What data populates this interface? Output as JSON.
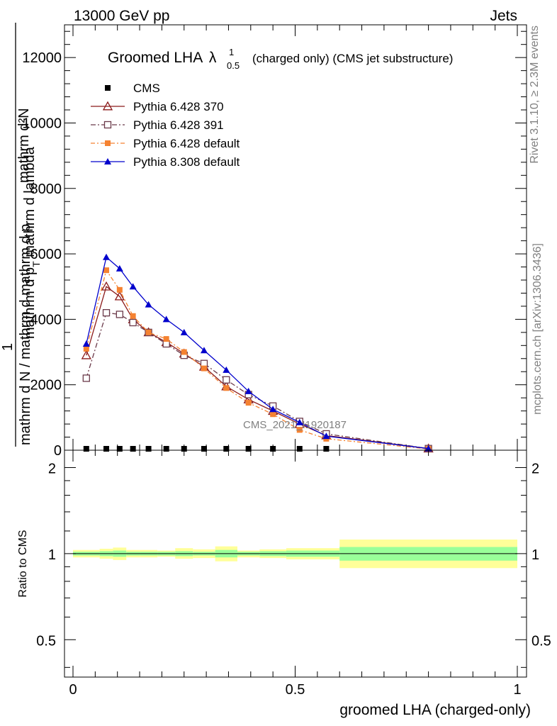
{
  "header": {
    "left": "13000 GeV pp",
    "right": "Jets"
  },
  "side": {
    "rivet": "Rivet 3.1.10, ≥ 2.3M events",
    "mcplots": "mcplots.cern.ch [arXiv:1306.3436]"
  },
  "watermark": "CMS_2021_I1920187",
  "chart_data": [
    {
      "type": "line",
      "title": "Groomed LHA",
      "title_symbol": "λ",
      "title_sup": "1",
      "title_sub": "0.5",
      "title_suffix": "(charged only) (CMS jet substructure)",
      "ylabel_top": "mathrm d²N",
      "ylabel_top_sub": "mathrm d p",
      "ylabel_top_subsub": "T",
      "ylabel_top_rest": " mathrm d lambda",
      "ylabel_bottom_one": "1",
      "ylabel_bottom": "mathrm d N / mathrm d mathrm d p",
      "ylim": [
        0,
        13000
      ],
      "y_ticks": [
        0,
        2000,
        4000,
        6000,
        8000,
        10000,
        12000
      ],
      "y_tick_labels": [
        "0",
        "2000",
        "4000",
        "6000",
        "8000",
        "10000",
        "12000"
      ],
      "xlim": [
        0,
        1
      ],
      "series": [
        {
          "name": "CMS",
          "color": "#000000",
          "marker": "square-filled",
          "x": [
            0.03,
            0.075,
            0.105,
            0.135,
            0.17,
            0.21,
            0.25,
            0.295,
            0.345,
            0.395,
            0.45,
            0.51,
            0.57
          ],
          "values": [
            0,
            0,
            0,
            0,
            0,
            0,
            0,
            0,
            0,
            0,
            0,
            0,
            0
          ]
        },
        {
          "name": "Pythia 6.428 370",
          "color": "#8b1a1a",
          "marker": "triangle-open",
          "x": [
            0.03,
            0.075,
            0.105,
            0.135,
            0.17,
            0.21,
            0.25,
            0.295,
            0.345,
            0.395,
            0.45,
            0.51,
            0.57,
            0.8
          ],
          "values": [
            2900,
            5000,
            4700,
            4000,
            3600,
            3300,
            2950,
            2550,
            1950,
            1550,
            1200,
            800,
            450,
            50
          ]
        },
        {
          "name": "Pythia 6.428 391",
          "color": "#6b3a4a",
          "marker": "square-open",
          "x": [
            0.03,
            0.075,
            0.105,
            0.135,
            0.17,
            0.21,
            0.25,
            0.295,
            0.345,
            0.395,
            0.45,
            0.51,
            0.57,
            0.8
          ],
          "values": [
            2200,
            4200,
            4150,
            3900,
            3600,
            3250,
            2900,
            2650,
            2150,
            1700,
            1350,
            880,
            500,
            50
          ]
        },
        {
          "name": "Pythia 6.428 default",
          "color": "#f58231",
          "marker": "square-filled",
          "x": [
            0.03,
            0.075,
            0.105,
            0.135,
            0.17,
            0.21,
            0.25,
            0.295,
            0.345,
            0.395,
            0.45,
            0.51,
            0.57,
            0.8
          ],
          "values": [
            3100,
            5500,
            4900,
            4100,
            3600,
            3400,
            3000,
            2500,
            1900,
            1450,
            1100,
            620,
            350,
            40
          ]
        },
        {
          "name": "Pythia 8.308 default",
          "color": "#0000cc",
          "marker": "triangle-filled",
          "x": [
            0.03,
            0.075,
            0.105,
            0.135,
            0.17,
            0.21,
            0.25,
            0.295,
            0.345,
            0.395,
            0.45,
            0.51,
            0.57,
            0.8
          ],
          "values": [
            3250,
            5900,
            5550,
            5000,
            4450,
            4000,
            3600,
            3050,
            2450,
            1800,
            1250,
            850,
            430,
            50
          ]
        }
      ],
      "legend": "top-left"
    },
    {
      "type": "area",
      "ylabel": "Ratio to CMS",
      "xlabel": "groomed LHA (charged-only)",
      "ylim": [
        0.37,
        2.3
      ],
      "y_ticks": [
        0.5,
        1,
        2
      ],
      "y_tick_labels": [
        "0.5",
        "1",
        "2"
      ],
      "xlim": [
        -0.02,
        1.02
      ],
      "x_ticks": [
        0,
        0.5,
        1
      ],
      "x_tick_labels": [
        "0",
        "0.5",
        "1"
      ],
      "reference": 1,
      "bins": [
        {
          "lo": 0.0,
          "hi": 0.06,
          "inner": [
            0.985,
            1.015
          ],
          "outer": [
            0.97,
            1.03
          ]
        },
        {
          "lo": 0.06,
          "hi": 0.09,
          "inner": [
            0.98,
            1.02
          ],
          "outer": [
            0.96,
            1.04
          ]
        },
        {
          "lo": 0.09,
          "hi": 0.12,
          "inner": [
            0.975,
            1.025
          ],
          "outer": [
            0.95,
            1.05
          ]
        },
        {
          "lo": 0.12,
          "hi": 0.15,
          "inner": [
            0.985,
            1.015
          ],
          "outer": [
            0.97,
            1.03
          ]
        },
        {
          "lo": 0.15,
          "hi": 0.19,
          "inner": [
            0.985,
            1.015
          ],
          "outer": [
            0.97,
            1.03
          ]
        },
        {
          "lo": 0.19,
          "hi": 0.23,
          "inner": [
            0.985,
            1.015
          ],
          "outer": [
            0.975,
            1.025
          ]
        },
        {
          "lo": 0.23,
          "hi": 0.27,
          "inner": [
            0.98,
            1.02
          ],
          "outer": [
            0.96,
            1.045
          ]
        },
        {
          "lo": 0.27,
          "hi": 0.32,
          "inner": [
            0.985,
            1.015
          ],
          "outer": [
            0.965,
            1.035
          ]
        },
        {
          "lo": 0.32,
          "hi": 0.37,
          "inner": [
            0.97,
            1.03
          ],
          "outer": [
            0.94,
            1.06
          ]
        },
        {
          "lo": 0.37,
          "hi": 0.42,
          "inner": [
            0.985,
            1.015
          ],
          "outer": [
            0.97,
            1.025
          ]
        },
        {
          "lo": 0.42,
          "hi": 0.48,
          "inner": [
            0.98,
            1.02
          ],
          "outer": [
            0.965,
            1.035
          ]
        },
        {
          "lo": 0.48,
          "hi": 0.6,
          "inner": [
            0.975,
            1.025
          ],
          "outer": [
            0.955,
            1.045
          ]
        },
        {
          "lo": 0.6,
          "hi": 1.0,
          "inner": [
            0.945,
            1.055
          ],
          "outer": [
            0.89,
            1.12
          ]
        }
      ],
      "band_colors": {
        "inner": "#99ff99",
        "outer": "#ffff99"
      }
    }
  ]
}
